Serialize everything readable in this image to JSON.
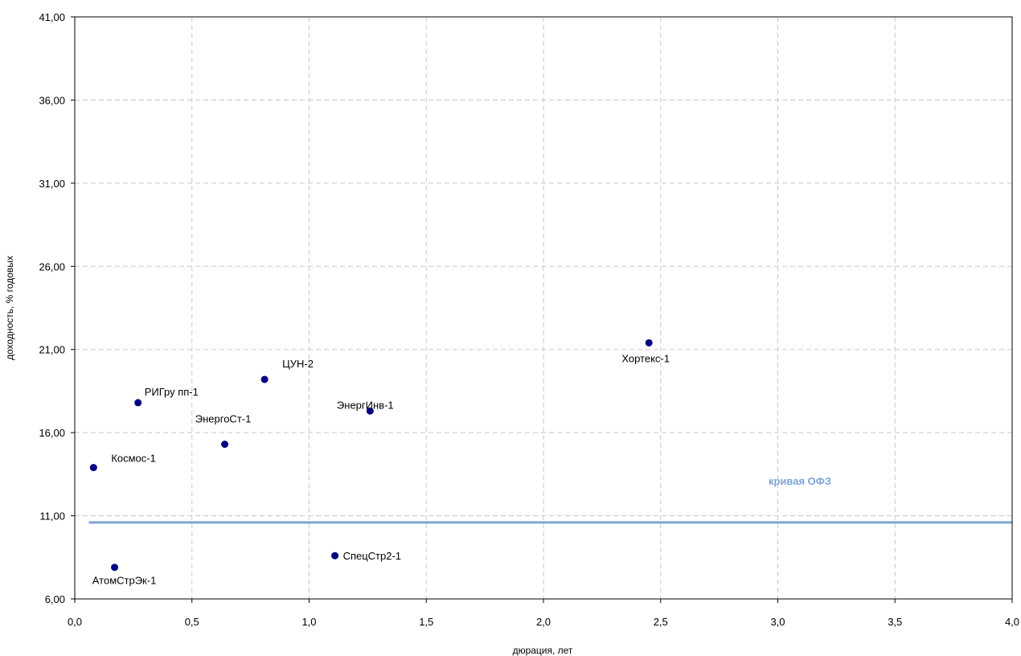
{
  "chart_data": {
    "type": "scatter",
    "xlabel": "дюрация, лет",
    "ylabel": "доходность, % годовых",
    "xlim": [
      0,
      4
    ],
    "ylim": [
      6,
      41
    ],
    "x_ticks": [
      "0,0",
      "0,5",
      "1,0",
      "1,5",
      "2,0",
      "2,5",
      "3,0",
      "3,5",
      "4,0"
    ],
    "y_ticks": [
      "6,00",
      "11,00",
      "16,00",
      "21,00",
      "26,00",
      "31,00",
      "36,00",
      "41,00"
    ],
    "grid": true,
    "marker_color": "#000080",
    "points": [
      {
        "label": "Космос-1",
        "x": 0.08,
        "y": 13.9
      },
      {
        "label": "АтомСтрЭк-1",
        "x": 0.17,
        "y": 7.9
      },
      {
        "label": "РИГру пп-1",
        "x": 0.27,
        "y": 17.8
      },
      {
        "label": "ЭнергоСт-1",
        "x": 0.64,
        "y": 15.3
      },
      {
        "label": "ЦУН-2",
        "x": 0.81,
        "y": 19.2
      },
      {
        "label": "СпецСтр2-1",
        "x": 1.11,
        "y": 8.6
      },
      {
        "label": "ЭнергИнв-1",
        "x": 1.26,
        "y": 17.3
      },
      {
        "label": "Хортекс-1",
        "x": 2.45,
        "y": 21.4
      }
    ],
    "curve": {
      "label": "кривая ОФЗ",
      "color": "#7ea6d4",
      "x": [
        0.06,
        4.0
      ],
      "y": [
        10.6,
        10.6
      ]
    }
  }
}
